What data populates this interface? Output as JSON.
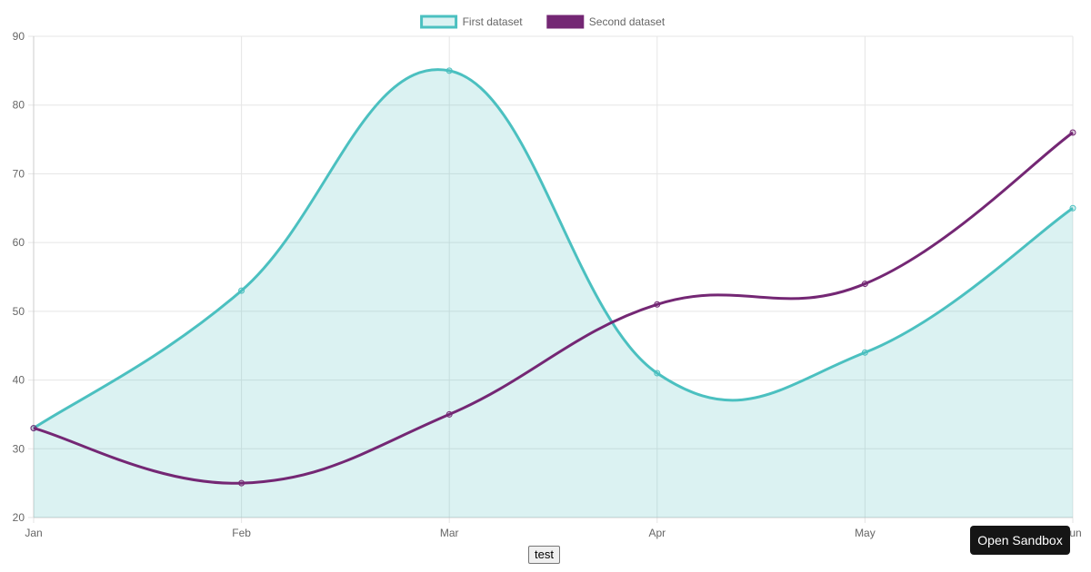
{
  "chart_data": {
    "type": "line",
    "categories": [
      "Jan",
      "Feb",
      "Mar",
      "Apr",
      "May",
      "Jun"
    ],
    "ylim": [
      20,
      90
    ],
    "yticks": [
      20,
      30,
      40,
      50,
      60,
      70,
      80,
      90
    ],
    "grid": true,
    "legend_position": "top",
    "series": [
      {
        "name": "First dataset",
        "values": [
          33,
          53,
          85,
          41,
          44,
          65
        ],
        "color": "#4bc0c0",
        "fill": "rgba(75,192,192,0.2)",
        "filled": true
      },
      {
        "name": "Second dataset",
        "values": [
          33,
          25,
          35,
          51,
          54,
          76
        ],
        "color": "#742774",
        "filled": false
      }
    ]
  },
  "controls": {
    "test_label": "test",
    "sandbox_label": "Open Sandbox"
  }
}
